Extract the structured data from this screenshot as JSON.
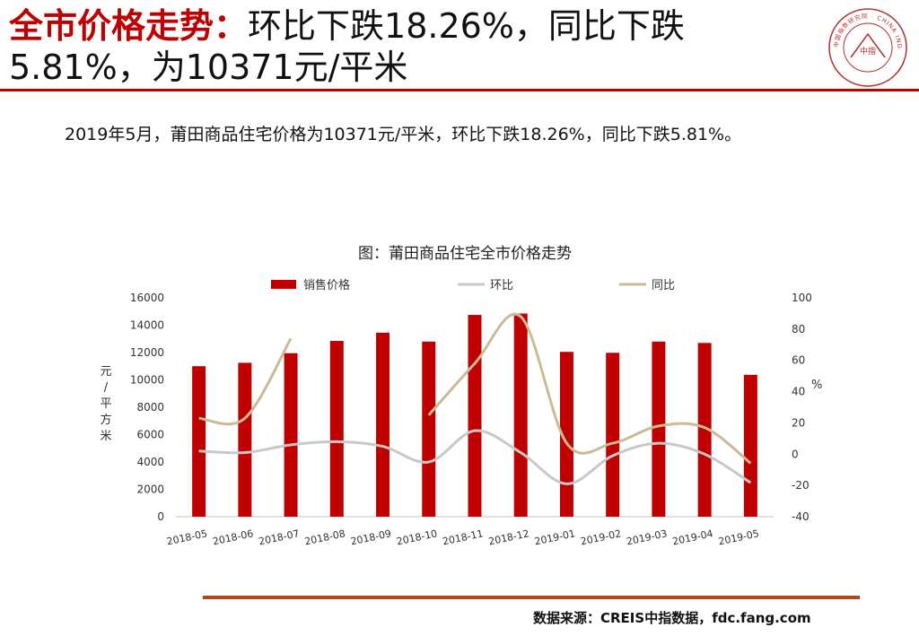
{
  "header": {
    "title_accent": "全市价格走势：",
    "title_rest": "环比下跌18.26%，同比下跌5.81%，为10371元/平米"
  },
  "summary": "2019年5月，莆田商品住宅价格为10371元/平米，环比下跌18.26%，同比下跌5.81%。",
  "logo": {
    "center_text": "中指",
    "ring_text": "中国指数研究院 · CHINA INDEX ACADEMY"
  },
  "source": "数据来源：CREIS中指数据，fdc.fang.com",
  "colors": {
    "accent": "#c00000",
    "bar": "#c00000",
    "mom_line": "#c8c8c8",
    "yoy_line": "#c9bc94",
    "footer_rule": "#b5451b"
  },
  "chart_data": {
    "type": "bar",
    "title": "图：莆田商品住宅全市价格走势",
    "categories": [
      "2018-05",
      "2018-06",
      "2018-07",
      "2018-08",
      "2018-09",
      "2018-10",
      "2018-11",
      "2018-12",
      "2019-01",
      "2019-02",
      "2019-03",
      "2019-04",
      "2019-05"
    ],
    "series": [
      {
        "name": "销售价格",
        "type": "bar",
        "axis": "left",
        "values": [
          11000,
          11250,
          11950,
          12850,
          13450,
          12800,
          14750,
          14850,
          12050,
          11980,
          12800,
          12700,
          10371
        ]
      },
      {
        "name": "环比",
        "type": "line",
        "axis": "right",
        "values": [
          2,
          1,
          6,
          8,
          5,
          -5,
          15,
          1,
          -19,
          -1,
          7,
          0,
          -18.26
        ]
      },
      {
        "name": "同比",
        "type": "line",
        "axis": "right",
        "values": [
          23,
          23,
          74,
          null,
          null,
          25,
          58,
          88,
          7,
          7,
          18,
          17,
          -5.81
        ]
      }
    ],
    "ylabel": "元/平方米",
    "y2label": "%",
    "ylim": [
      0,
      16000
    ],
    "yticks": [
      0,
      2000,
      4000,
      6000,
      8000,
      10000,
      12000,
      14000,
      16000
    ],
    "y2lim": [
      -40,
      100
    ],
    "y2ticks": [
      -40,
      -20,
      0,
      20,
      40,
      60,
      80,
      100
    ],
    "grid": false,
    "legend": "top"
  }
}
